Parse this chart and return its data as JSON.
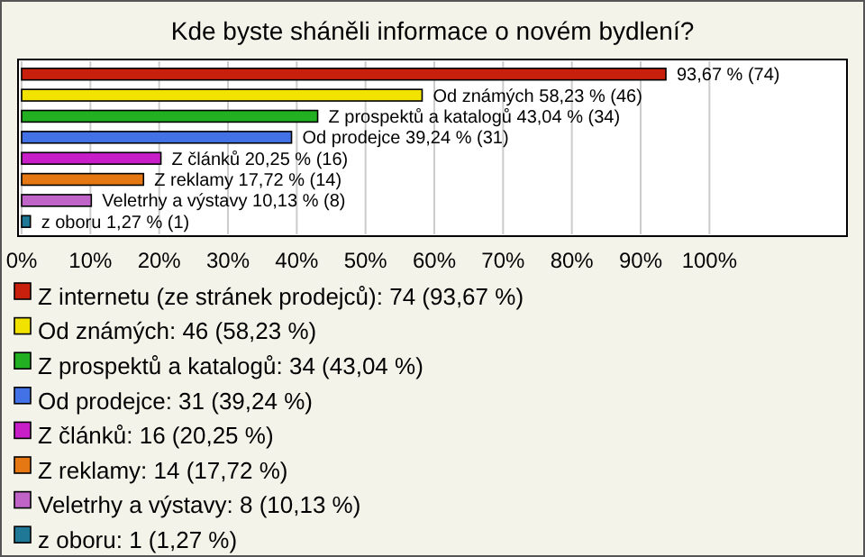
{
  "chart_data": {
    "type": "bar",
    "orientation": "horizontal",
    "title": "Kde byste sháněli informace o novém bydlení?",
    "categories": [
      null,
      null,
      null,
      null,
      null,
      null,
      null,
      null
    ],
    "series": [
      {
        "name": "Z internetu (ze stránek prodejců): 74 (93,67 %)",
        "color": "#c8200c",
        "values": [
          93.67,
          null,
          null,
          null,
          null,
          null,
          null,
          null
        ],
        "value_labels": [
          "93,67 % (74)",
          null,
          null,
          null,
          null,
          null,
          null,
          null
        ]
      },
      {
        "name": "Od známých: 46 (58,23 %)",
        "color": "#f2e200",
        "values": [
          null,
          58.23,
          null,
          null,
          null,
          null,
          null,
          null
        ],
        "value_labels": [
          null,
          "Od známých 58,23 % (46)",
          null,
          null,
          null,
          null,
          null,
          null
        ]
      },
      {
        "name": "Z prospektů a katalogů: 34 (43,04 %)",
        "color": "#22b022",
        "values": [
          null,
          null,
          43.04,
          null,
          null,
          null,
          null,
          null
        ],
        "value_labels": [
          null,
          null,
          "Z prospektů a katalogů 43,04 % (34)",
          null,
          null,
          null,
          null,
          null
        ]
      },
      {
        "name": "Od prodejce: 31 (39,24 %)",
        "color": "#4272e6",
        "values": [
          null,
          null,
          null,
          39.24,
          null,
          null,
          null,
          null
        ],
        "value_labels": [
          null,
          null,
          null,
          "Od prodejce 39,24 % (31)",
          null,
          null,
          null,
          null
        ]
      },
      {
        "name": "Z článků: 16 (20,25 %)",
        "color": "#c81ec8",
        "values": [
          null,
          null,
          null,
          null,
          20.25,
          null,
          null,
          null
        ],
        "value_labels": [
          null,
          null,
          null,
          null,
          "Z článků 20,25 % (16)",
          null,
          null,
          null
        ]
      },
      {
        "name": "Z reklamy: 14 (17,72 %)",
        "color": "#e67814",
        "values": [
          null,
          null,
          null,
          null,
          null,
          17.72,
          null,
          null
        ],
        "value_labels": [
          null,
          null,
          null,
          null,
          null,
          "Z reklamy 17,72 % (14)",
          null,
          null
        ]
      },
      {
        "name": "Veletrhy a výstavy: 8 (10,13 %)",
        "color": "#c064c8",
        "values": [
          null,
          null,
          null,
          null,
          null,
          null,
          10.13,
          null
        ],
        "value_labels": [
          null,
          null,
          null,
          null,
          null,
          null,
          "Veletrhy a výstavy 10,13 % (8)",
          null
        ]
      },
      {
        "name": "z oboru: 1 (1,27 %)",
        "color": "#1e7896",
        "values": [
          null,
          null,
          null,
          null,
          null,
          null,
          null,
          1.27
        ],
        "value_labels": [
          null,
          null,
          null,
          null,
          null,
          null,
          null,
          "z oboru 1,27 % (1)"
        ]
      }
    ],
    "xlim": [
      0,
      120
    ],
    "xticks": [
      {
        "value": 0,
        "label": "0%"
      },
      {
        "value": 10,
        "label": "10%"
      },
      {
        "value": 20,
        "label": "20%"
      },
      {
        "value": 30,
        "label": "30%"
      },
      {
        "value": 40,
        "label": "40%"
      },
      {
        "value": 50,
        "label": "50%"
      },
      {
        "value": 60,
        "label": "60%"
      },
      {
        "value": 70,
        "label": "70%"
      },
      {
        "value": 80,
        "label": "80%"
      },
      {
        "value": 90,
        "label": "90%"
      },
      {
        "value": 100,
        "label": "100%"
      }
    ],
    "grid": "x",
    "legend": "bottom"
  }
}
